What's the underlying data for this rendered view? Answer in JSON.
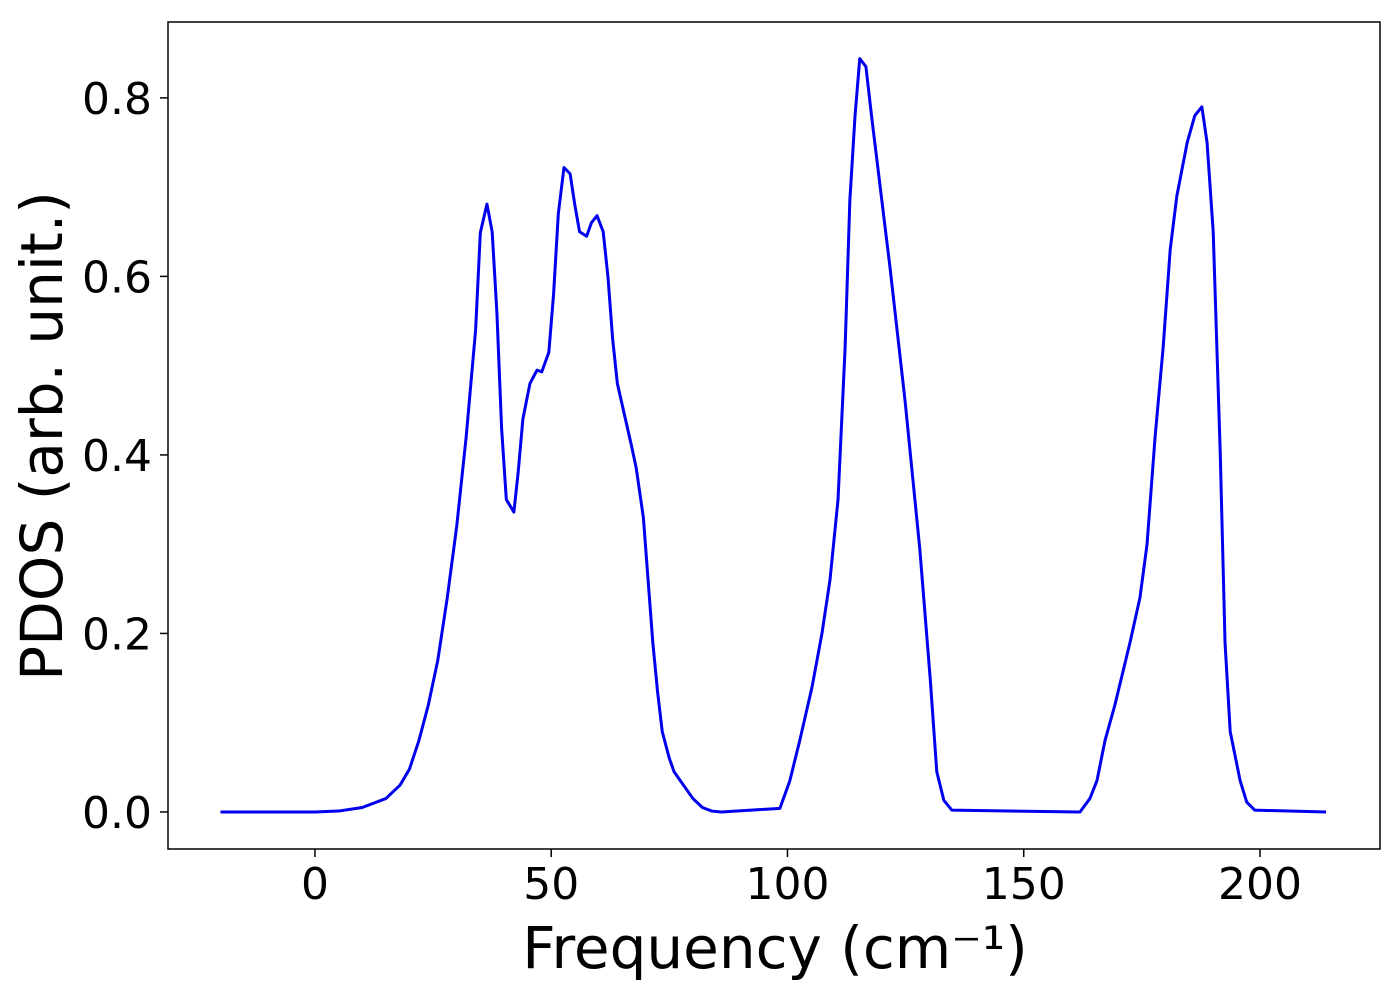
{
  "chart_data": {
    "type": "line",
    "xlabel": "Frequency (cm⁻¹)",
    "ylabel": "PDOS (arb. unit.)",
    "x": [
      -20,
      0,
      5,
      10,
      15,
      18,
      20,
      22,
      24,
      26,
      28,
      30,
      32,
      34,
      35,
      36.4,
      37.5,
      38.5,
      39.5,
      40.5,
      42.1,
      43,
      44,
      45.5,
      47,
      48,
      49.5,
      50.5,
      51.5,
      52.7,
      54,
      55,
      56,
      57.5,
      58.5,
      59.7,
      61,
      62,
      63,
      64,
      65.5,
      67,
      68,
      69.5,
      70.5,
      71.5,
      72.5,
      73.5,
      75,
      76,
      78,
      80,
      82,
      84,
      86,
      98.4,
      100.5,
      102.6,
      105.2,
      107.3,
      109,
      110.7,
      112.2,
      113.2,
      114.3,
      115.3,
      116.6,
      117.9,
      121.7,
      124.9,
      128,
      130.2,
      131.6,
      133.1,
      134.8,
      161.9,
      164,
      165.5,
      167.2,
      169.3,
      172.5,
      174.6,
      176.1,
      177.8,
      179.5,
      181,
      182.4,
      184.6,
      186.2,
      187.7,
      188.8,
      190.1,
      191.6,
      192.6,
      193.7,
      195.8,
      197.2,
      198.9,
      214
    ],
    "series": [
      {
        "name": "PDOS",
        "color": "#0000ee",
        "values": [
          0,
          0,
          0.001,
          0.005,
          0.015,
          0.03,
          0.048,
          0.08,
          0.12,
          0.17,
          0.24,
          0.32,
          0.42,
          0.54,
          0.649,
          0.681,
          0.65,
          0.56,
          0.43,
          0.35,
          0.336,
          0.38,
          0.44,
          0.48,
          0.495,
          0.493,
          0.515,
          0.58,
          0.67,
          0.722,
          0.715,
          0.68,
          0.65,
          0.645,
          0.66,
          0.668,
          0.65,
          0.6,
          0.53,
          0.48,
          0.445,
          0.41,
          0.385,
          0.33,
          0.26,
          0.19,
          0.135,
          0.09,
          0.06,
          0.045,
          0.03,
          0.015,
          0.005,
          0.001,
          0,
          0.004,
          0.035,
          0.08,
          0.14,
          0.2,
          0.26,
          0.35,
          0.52,
          0.685,
          0.78,
          0.844,
          0.835,
          0.775,
          0.61,
          0.46,
          0.295,
          0.15,
          0.045,
          0.013,
          0.002,
          0,
          0.015,
          0.035,
          0.08,
          0.12,
          0.19,
          0.24,
          0.3,
          0.42,
          0.52,
          0.63,
          0.69,
          0.75,
          0.78,
          0.79,
          0.75,
          0.65,
          0.4,
          0.19,
          0.09,
          0.035,
          0.011,
          0.002,
          0
        ]
      }
    ],
    "xlim": [
      -31.1,
      225.4
    ],
    "ylim": [
      -0.0415,
      0.885
    ],
    "xticks": [
      0,
      50,
      100,
      150,
      200
    ],
    "yticks": [
      {
        "value": 0,
        "label": "0.0"
      },
      0.2,
      0.4,
      0.6,
      0.8
    ],
    "grid": false
  }
}
